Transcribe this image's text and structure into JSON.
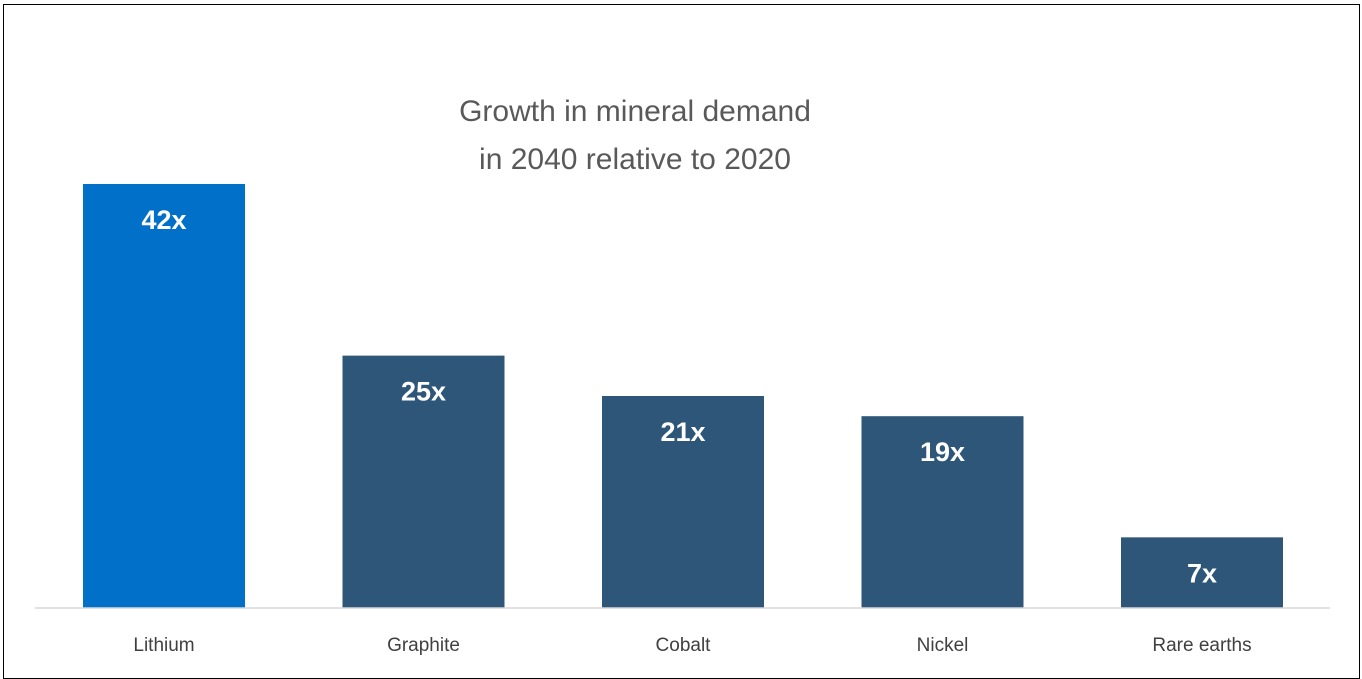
{
  "chart_data": {
    "type": "bar",
    "title_lines": [
      "Growth in mineral demand",
      "in 2040 relative to 2020"
    ],
    "categories": [
      "Lithium",
      "Graphite",
      "Cobalt",
      "Nickel",
      "Rare earths"
    ],
    "values": [
      42,
      25,
      21,
      19,
      7
    ],
    "data_labels": [
      "42x",
      "25x",
      "21x",
      "19x",
      "7x"
    ],
    "colors": [
      "#0070C8",
      "#2E5678",
      "#2E5678",
      "#2E5678",
      "#2E5678"
    ],
    "xlabel": "",
    "ylabel": "",
    "ylim": [
      0,
      42
    ],
    "grid": false,
    "legend": "none"
  }
}
